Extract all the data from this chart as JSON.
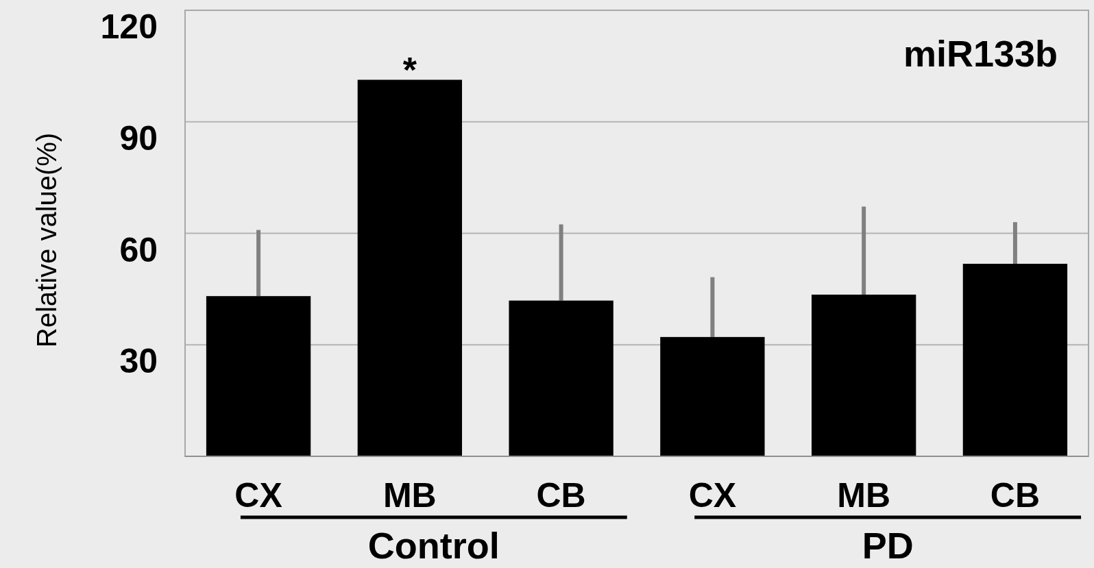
{
  "chart_data": {
    "type": "bar",
    "title": "miR133b",
    "ylabel": "Relative value(%)",
    "categories": [
      "CX",
      "MB",
      "CB",
      "CX",
      "MB",
      "CB"
    ],
    "values": [
      43.1,
      101.3,
      41.9,
      32.1,
      43.5,
      51.8
    ],
    "errors": [
      [
        43.1,
        60.9
      ],
      null,
      [
        41.9,
        62.4
      ],
      [
        32.1,
        48.2
      ],
      [
        43.5,
        67.2
      ],
      [
        51.8,
        63
      ]
    ],
    "color": "#000000",
    "ylim": [
      0,
      120
    ],
    "yticks": [
      30,
      60,
      90,
      120
    ],
    "grid": "y",
    "annotations": [
      "*",
      "Control",
      "PD"
    ]
  }
}
